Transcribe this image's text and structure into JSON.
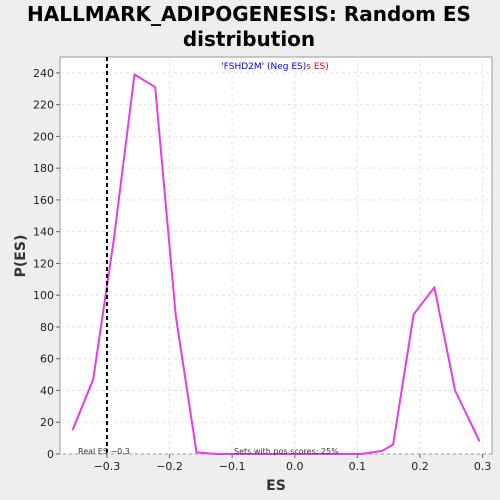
{
  "chart_data": {
    "type": "line",
    "title_line1": "HALLMARK_ADIPOGENESIS: Random ES",
    "title_line2": "distribution",
    "xlabel": "ES",
    "ylabel": "P(ES)",
    "xlim": [
      -0.375,
      0.315
    ],
    "ylim": [
      0,
      250
    ],
    "x_ticks": [
      -0.3,
      -0.2,
      -0.1,
      0.0,
      0.1,
      0.2,
      0.3
    ],
    "y_ticks": [
      0,
      20,
      40,
      60,
      80,
      100,
      120,
      140,
      160,
      180,
      200,
      220,
      240
    ],
    "series": [
      {
        "color": "#e83be8",
        "x": [
          -0.355,
          -0.322,
          -0.289,
          -0.256,
          -0.223,
          -0.19,
          -0.157,
          -0.124,
          -0.091,
          -0.058,
          -0.025,
          0.008,
          0.041,
          0.074,
          0.107,
          0.14,
          0.157,
          0.19,
          0.223,
          0.256,
          0.295
        ],
        "y": [
          15,
          47,
          135,
          239,
          231,
          87,
          1,
          0,
          0,
          0,
          0,
          0,
          0,
          0,
          0,
          2,
          6,
          88,
          105,
          40,
          8
        ]
      }
    ],
    "real_es": {
      "value": -0.3,
      "label": "Real ES −0.3"
    },
    "legend": {
      "blue_text": "'FSHD2M' (Neg ES)",
      "red_text": "s ES)"
    },
    "annotation": "Sets with pos scores: 25%",
    "grid": true,
    "colors": {
      "line": "#e83be8",
      "background": "#eeeeee",
      "plot": "#ffffff",
      "legend_blue": "#0000ee",
      "legend_red": "#ee0000"
    }
  }
}
